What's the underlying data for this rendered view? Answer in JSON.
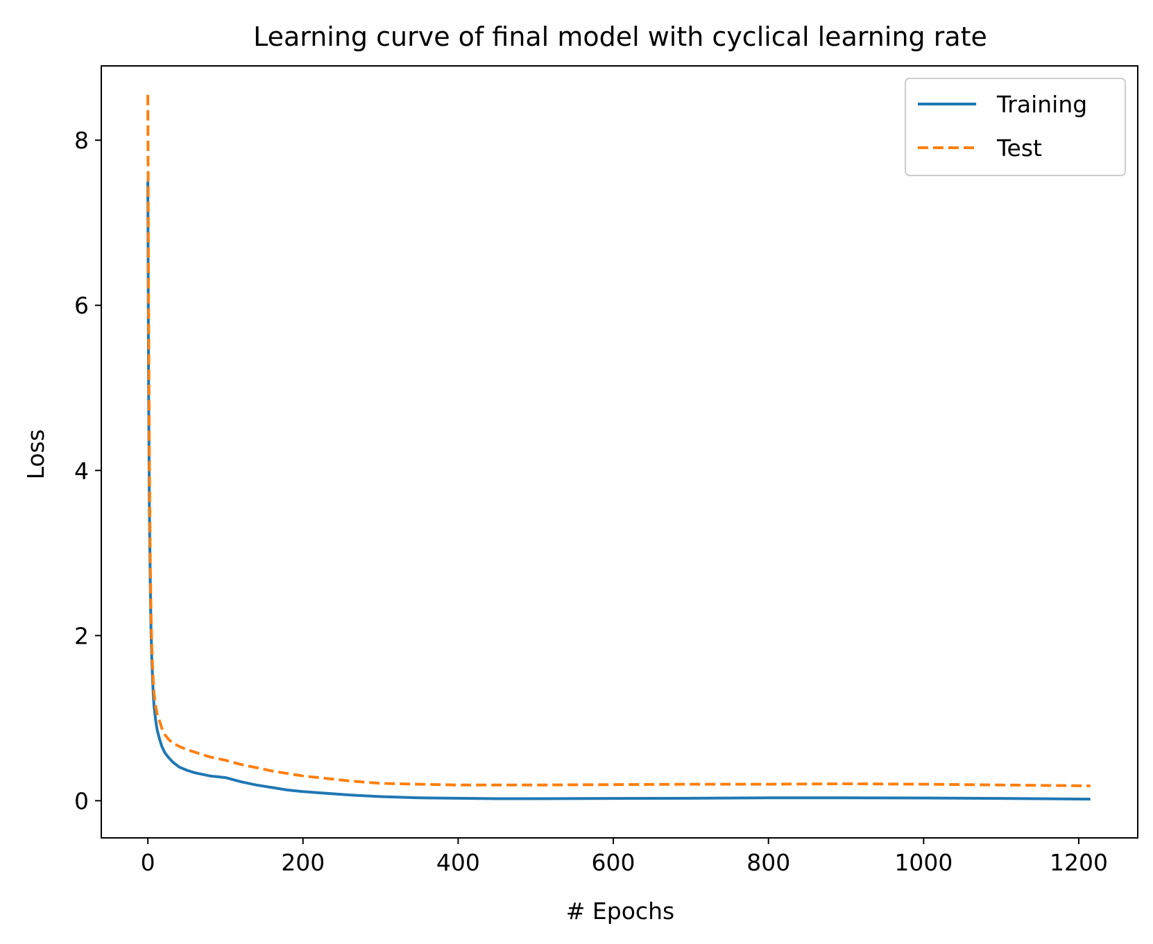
{
  "chart_data": {
    "type": "line",
    "title": "Learning curve of final model with cyclical learning rate",
    "xlabel": "# Epochs",
    "ylabel": "Loss",
    "xlim": [
      -60,
      1276
    ],
    "ylim": [
      -0.45,
      8.9
    ],
    "xticks": [
      0,
      200,
      400,
      600,
      800,
      1000,
      1200
    ],
    "yticks": [
      0,
      2,
      4,
      6,
      8
    ],
    "grid": false,
    "legend_position": "top-right",
    "series": [
      {
        "name": "Training",
        "color": "#1f77b4",
        "style": "solid",
        "x": [
          0,
          1,
          2,
          3,
          4,
          5,
          6,
          7,
          8,
          10,
          12,
          15,
          18,
          22,
          27,
          32,
          40,
          50,
          60,
          70,
          80,
          90,
          100,
          120,
          140,
          160,
          180,
          200,
          230,
          260,
          300,
          350,
          400,
          450,
          500,
          600,
          700,
          800,
          900,
          1000,
          1100,
          1215
        ],
        "y": [
          7.5,
          5.0,
          3.6,
          2.7,
          2.1,
          1.75,
          1.5,
          1.3,
          1.15,
          0.98,
          0.86,
          0.75,
          0.66,
          0.58,
          0.52,
          0.47,
          0.41,
          0.37,
          0.34,
          0.32,
          0.3,
          0.29,
          0.28,
          0.23,
          0.19,
          0.16,
          0.13,
          0.11,
          0.09,
          0.07,
          0.05,
          0.035,
          0.03,
          0.025,
          0.025,
          0.028,
          0.03,
          0.035,
          0.035,
          0.033,
          0.028,
          0.02
        ]
      },
      {
        "name": "Test",
        "color": "#ff7f0e",
        "style": "dashed",
        "x": [
          0,
          1,
          2,
          3,
          4,
          5,
          6,
          7,
          8,
          10,
          12,
          15,
          18,
          22,
          27,
          32,
          40,
          50,
          60,
          70,
          80,
          90,
          100,
          120,
          140,
          160,
          180,
          200,
          230,
          260,
          300,
          350,
          400,
          450,
          500,
          600,
          700,
          800,
          900,
          1000,
          1100,
          1215
        ],
        "y": [
          8.55,
          6.0,
          4.2,
          3.0,
          2.3,
          1.9,
          1.65,
          1.45,
          1.3,
          1.15,
          1.05,
          0.97,
          0.88,
          0.8,
          0.74,
          0.7,
          0.66,
          0.62,
          0.59,
          0.56,
          0.53,
          0.51,
          0.49,
          0.44,
          0.4,
          0.36,
          0.33,
          0.3,
          0.27,
          0.24,
          0.21,
          0.2,
          0.19,
          0.19,
          0.19,
          0.195,
          0.2,
          0.2,
          0.205,
          0.2,
          0.19,
          0.18
        ]
      }
    ]
  }
}
